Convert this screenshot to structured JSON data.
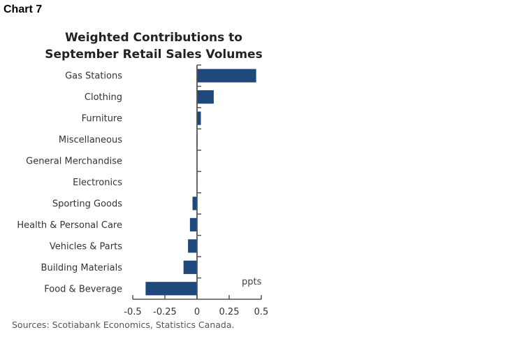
{
  "header": {
    "chart_label": "Chart 7"
  },
  "chart_data": {
    "type": "bar",
    "orientation": "horizontal",
    "title": "Weighted Contributions to September Retail Sales Volumes",
    "title_lines": [
      "Weighted Contributions to",
      "September Retail Sales Volumes"
    ],
    "categories": [
      "Gas Stations",
      "Clothing",
      "Furniture",
      "Miscellaneous",
      "General Merchandise",
      "Electronics",
      "Sporting Goods",
      "Health & Personal Care",
      "Vehicles & Parts",
      "Building Materials",
      "Food & Beverage"
    ],
    "values": [
      0.46,
      0.13,
      0.03,
      0.003,
      0.0,
      -0.003,
      -0.035,
      -0.055,
      -0.07,
      -0.105,
      -0.4
    ],
    "xlabel": "",
    "ylabel": "",
    "unit_label": "ppts",
    "xlim": [
      -0.5,
      0.5
    ],
    "xticks": [
      -0.5,
      -0.25,
      0,
      0.25,
      0.5
    ],
    "xtick_labels": [
      "-0.5",
      "-0.25",
      "0",
      "0.25",
      "0.5"
    ],
    "grid": false,
    "legend": "none",
    "bar_color": "#1f497d",
    "source": "Sources: Scotiabank Economics, Statistics Canada."
  }
}
